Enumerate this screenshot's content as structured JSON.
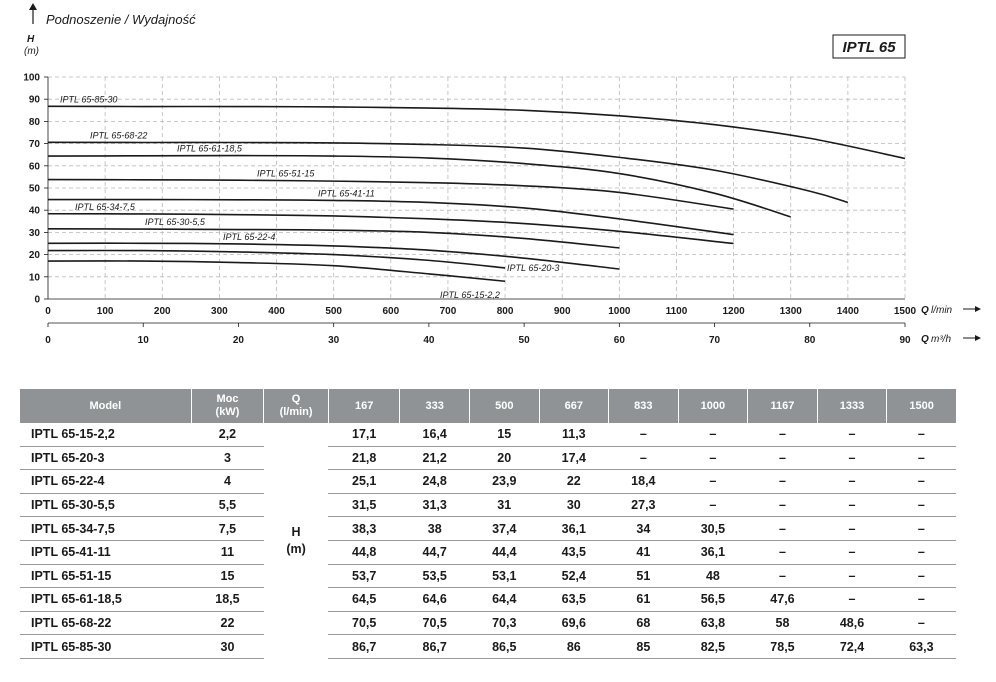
{
  "header": {
    "title": "Podnoszenie / Wydajność",
    "axis_h_label": "H",
    "axis_h_unit": "(m)",
    "model_box": "IPTL 65"
  },
  "chart_data": {
    "type": "line",
    "title": "Podnoszenie / Wydajność",
    "ylabel": "H (m)",
    "xlabel": "Q l/min",
    "x2label": "Q m³/h",
    "x_unit_q": "Q",
    "x_unit_lmin": "l/min",
    "x_unit_m3h": "m³/h",
    "ylim": [
      0,
      100
    ],
    "xlim": [
      0,
      1500
    ],
    "y_ticks": [
      0,
      10,
      20,
      30,
      40,
      50,
      60,
      70,
      80,
      90,
      100
    ],
    "x_ticks": [
      0,
      100,
      200,
      300,
      400,
      500,
      600,
      700,
      800,
      900,
      1000,
      1100,
      1200,
      1300,
      1400,
      1500
    ],
    "x2_ticks": [
      0,
      10,
      20,
      30,
      40,
      50,
      60,
      70,
      80,
      90
    ],
    "series": [
      {
        "name": "IPTL 65-85-30",
        "x": [
          0,
          167,
          333,
          500,
          667,
          833,
          1000,
          1167,
          1333,
          1500
        ],
        "y": [
          86.8,
          86.7,
          86.7,
          86.5,
          86,
          85,
          82.5,
          78.5,
          72.4,
          63.3
        ]
      },
      {
        "name": "IPTL 65-68-22",
        "x": [
          0,
          167,
          333,
          500,
          667,
          833,
          1000,
          1167,
          1333,
          1400
        ],
        "y": [
          70.6,
          70.5,
          70.5,
          70.3,
          69.6,
          68,
          63.8,
          58,
          48.6,
          43.5
        ]
      },
      {
        "name": "IPTL 65-61-18,5",
        "x": [
          0,
          167,
          333,
          500,
          667,
          833,
          1000,
          1167,
          1300
        ],
        "y": [
          64.4,
          64.5,
          64.6,
          64.4,
          63.5,
          61,
          56.5,
          47.6,
          37
        ]
      },
      {
        "name": "IPTL 65-51-15",
        "x": [
          0,
          167,
          333,
          500,
          667,
          833,
          1000,
          1200
        ],
        "y": [
          53.8,
          53.7,
          53.5,
          53.1,
          52.4,
          51,
          48,
          40.5
        ]
      },
      {
        "name": "IPTL 65-41-11",
        "x": [
          0,
          167,
          333,
          500,
          667,
          833,
          1000,
          1200
        ],
        "y": [
          44.8,
          44.8,
          44.7,
          44.4,
          43.5,
          41,
          36.1,
          29
        ]
      },
      {
        "name": "IPTL 65-34-7,5",
        "x": [
          0,
          167,
          333,
          500,
          667,
          833,
          1000,
          1200
        ],
        "y": [
          38.4,
          38.3,
          38,
          37.4,
          36.1,
          34,
          30.5,
          25
        ]
      },
      {
        "name": "IPTL 65-30-5,5",
        "x": [
          0,
          167,
          333,
          500,
          667,
          833,
          1000
        ],
        "y": [
          31.6,
          31.5,
          31.3,
          31,
          30,
          27.3,
          23
        ]
      },
      {
        "name": "IPTL 65-22-4",
        "x": [
          0,
          167,
          333,
          500,
          667,
          833,
          1000
        ],
        "y": [
          25.1,
          25.1,
          24.8,
          23.9,
          22,
          18.4,
          13.5
        ]
      },
      {
        "name": "IPTL 65-20-3",
        "x": [
          0,
          167,
          333,
          500,
          667,
          800
        ],
        "y": [
          21.8,
          21.8,
          21.2,
          20,
          17.4,
          14
        ]
      },
      {
        "name": "IPTL 65-15-2,2",
        "x": [
          0,
          167,
          333,
          500,
          667,
          800
        ],
        "y": [
          17.1,
          17.1,
          16.4,
          15,
          11.3,
          8
        ]
      }
    ]
  },
  "table": {
    "headers": {
      "model": "Model",
      "power_line1": "Moc",
      "power_line2": "(kW)",
      "q_line1": "Q",
      "q_line2": "(l/min)",
      "flows": [
        "167",
        "333",
        "500",
        "667",
        "833",
        "1000",
        "1167",
        "1333",
        "1500"
      ]
    },
    "h_label_line1": "H",
    "h_label_line2": "(m)",
    "rows": [
      {
        "model": "IPTL 65-15-2,2",
        "power": "2,2",
        "values": [
          "17,1",
          "16,4",
          "15",
          "11,3",
          "–",
          "–",
          "–",
          "–",
          "–"
        ]
      },
      {
        "model": "IPTL 65-20-3",
        "power": "3",
        "values": [
          "21,8",
          "21,2",
          "20",
          "17,4",
          "–",
          "–",
          "–",
          "–",
          "–"
        ]
      },
      {
        "model": "IPTL 65-22-4",
        "power": "4",
        "values": [
          "25,1",
          "24,8",
          "23,9",
          "22",
          "18,4",
          "–",
          "–",
          "–",
          "–"
        ]
      },
      {
        "model": "IPTL 65-30-5,5",
        "power": "5,5",
        "values": [
          "31,5",
          "31,3",
          "31",
          "30",
          "27,3",
          "–",
          "–",
          "–",
          "–"
        ]
      },
      {
        "model": "IPTL 65-34-7,5",
        "power": "7,5",
        "values": [
          "38,3",
          "38",
          "37,4",
          "36,1",
          "34",
          "30,5",
          "–",
          "–",
          "–"
        ]
      },
      {
        "model": "IPTL 65-41-11",
        "power": "11",
        "values": [
          "44,8",
          "44,7",
          "44,4",
          "43,5",
          "41",
          "36,1",
          "–",
          "–",
          "–"
        ]
      },
      {
        "model": "IPTL 65-51-15",
        "power": "15",
        "values": [
          "53,7",
          "53,5",
          "53,1",
          "52,4",
          "51",
          "48",
          "–",
          "–",
          "–"
        ]
      },
      {
        "model": "IPTL 65-61-18,5",
        "power": "18,5",
        "values": [
          "64,5",
          "64,6",
          "64,4",
          "63,5",
          "61",
          "56,5",
          "47,6",
          "–",
          "–"
        ]
      },
      {
        "model": "IPTL 65-68-22",
        "power": "22",
        "values": [
          "70,5",
          "70,5",
          "70,3",
          "69,6",
          "68",
          "63,8",
          "58",
          "48,6",
          "–"
        ]
      },
      {
        "model": "IPTL 65-85-30",
        "power": "30",
        "values": [
          "86,7",
          "86,7",
          "86,5",
          "86",
          "85",
          "82,5",
          "78,5",
          "72,4",
          "63,3"
        ]
      }
    ]
  }
}
